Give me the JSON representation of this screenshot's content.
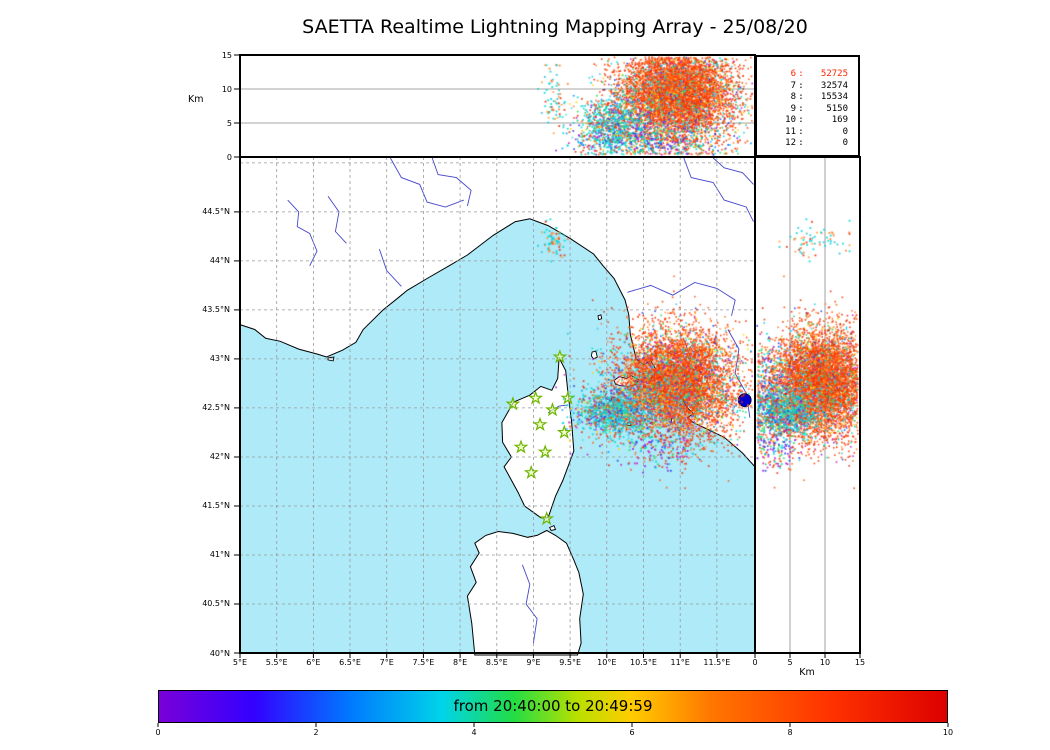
{
  "title": "SAETTA Realtime Lightning Mapping Array - 25/08/20",
  "axes": {
    "alt_label_top": "Km",
    "alt_label_right": "Km",
    "alt_ticks": [
      "0",
      "5",
      "10",
      "15"
    ],
    "alt_tick_values": [
      0,
      5,
      10,
      15
    ],
    "alt_grid_values": [
      5,
      10
    ],
    "lat_ticks": [
      "44.5°N",
      "44°N",
      "43.5°N",
      "43°N",
      "42.5°N",
      "42°N",
      "41.5°N",
      "41°N",
      "40.5°N",
      "40°N"
    ],
    "lat_tick_values": [
      44.5,
      44,
      43.5,
      43,
      42.5,
      42,
      41.5,
      41,
      40.5,
      40
    ],
    "lat_grid_values": [
      45,
      44.5,
      44,
      43.5,
      43,
      42.5,
      42,
      41.5,
      41,
      40.5
    ],
    "lon_ticks": [
      "5°E",
      "5.5°E",
      "6°E",
      "6.5°E",
      "7°E",
      "7.5°E",
      "8°E",
      "8.5°E",
      "9°E",
      "9.5°E",
      "10°E",
      "10.5°E",
      "11°E",
      "11.5°E"
    ],
    "lon_tick_values": [
      5,
      5.5,
      6,
      6.5,
      7,
      7.5,
      8,
      8.5,
      9,
      9.5,
      10,
      10.5,
      11,
      11.5
    ]
  },
  "station_stats": {
    "highlight_color": "#ff2200",
    "rows": [
      {
        "stations": "6",
        "count": "52725",
        "highlight": true
      },
      {
        "stations": "7",
        "count": "32574",
        "highlight": false
      },
      {
        "stations": "8",
        "count": "15534",
        "highlight": false
      },
      {
        "stations": "9",
        "count": "5150",
        "highlight": false
      },
      {
        "stations": "10",
        "count": "169",
        "highlight": false
      },
      {
        "stations": "11",
        "count": "0",
        "highlight": false
      },
      {
        "stations": "12",
        "count": "0",
        "highlight": false
      }
    ]
  },
  "colorbar": {
    "label": "from 20:40:00 to 20:49:59",
    "ticks": [
      "0",
      "2",
      "4",
      "6",
      "8",
      "10"
    ],
    "tick_values": [
      0,
      2,
      4,
      6,
      8,
      10
    ],
    "range": [
      0,
      10
    ],
    "gradient": [
      [
        0,
        "#7a00d8"
      ],
      [
        0.12,
        "#3300ff"
      ],
      [
        0.24,
        "#0077ff"
      ],
      [
        0.36,
        "#00d4e8"
      ],
      [
        0.45,
        "#22dd44"
      ],
      [
        0.53,
        "#b8e000"
      ],
      [
        0.6,
        "#ffcc00"
      ],
      [
        0.7,
        "#ff7700"
      ],
      [
        0.85,
        "#ff3300"
      ],
      [
        1,
        "#dd0000"
      ]
    ]
  },
  "map": {
    "sea_color": "#aeeaf8",
    "land_color": "#ffffff",
    "coast_color": "#000000",
    "river_color": "#4747cc",
    "grid_color": "#999999",
    "station_stroke": "#6db500",
    "station_fill": "#e8ffb0",
    "lon_range": [
      5,
      12.02
    ],
    "lat_range": [
      40,
      45.06
    ],
    "blue_marker": {
      "lon": 11.88,
      "lat": 42.58,
      "color": "#0000cc"
    },
    "coastlines": {
      "mainland": [
        [
          5.0,
          43.35
        ],
        [
          5.2,
          43.3
        ],
        [
          5.35,
          43.21
        ],
        [
          5.55,
          43.18
        ],
        [
          5.8,
          43.1
        ],
        [
          6.05,
          43.05
        ],
        [
          6.18,
          43.02
        ],
        [
          6.4,
          43.09
        ],
        [
          6.58,
          43.17
        ],
        [
          6.68,
          43.3
        ],
        [
          6.95,
          43.5
        ],
        [
          7.15,
          43.62
        ],
        [
          7.28,
          43.7
        ],
        [
          7.55,
          43.82
        ],
        [
          7.85,
          43.95
        ],
        [
          8.1,
          44.06
        ],
        [
          8.45,
          44.26
        ],
        [
          8.75,
          44.4
        ],
        [
          8.95,
          44.43
        ],
        [
          9.2,
          44.36
        ],
        [
          9.5,
          44.23
        ],
        [
          9.82,
          44.07
        ],
        [
          9.95,
          43.95
        ],
        [
          10.1,
          43.82
        ],
        [
          10.25,
          43.6
        ],
        [
          10.3,
          43.45
        ],
        [
          10.32,
          43.25
        ],
        [
          10.4,
          43.0
        ],
        [
          10.5,
          42.94
        ],
        [
          10.6,
          42.98
        ],
        [
          10.68,
          42.88
        ],
        [
          10.6,
          42.8
        ],
        [
          10.72,
          42.74
        ],
        [
          10.88,
          42.69
        ],
        [
          11.0,
          42.62
        ],
        [
          11.1,
          42.5
        ],
        [
          11.18,
          42.44
        ],
        [
          11.1,
          42.4
        ],
        [
          11.18,
          42.35
        ],
        [
          11.35,
          42.29
        ],
        [
          11.6,
          42.2
        ],
        [
          11.85,
          42.04
        ],
        [
          12.02,
          41.9
        ],
        [
          12.02,
          45.06
        ],
        [
          5.0,
          45.06
        ]
      ],
      "corsica": [
        [
          9.35,
          43.01
        ],
        [
          9.44,
          42.88
        ],
        [
          9.47,
          42.66
        ],
        [
          9.52,
          42.36
        ],
        [
          9.55,
          42.06
        ],
        [
          9.4,
          41.76
        ],
        [
          9.3,
          41.6
        ],
        [
          9.2,
          41.38
        ],
        [
          9.1,
          41.38
        ],
        [
          8.88,
          41.5
        ],
        [
          8.79,
          41.64
        ],
        [
          8.6,
          41.9
        ],
        [
          8.7,
          42.0
        ],
        [
          8.58,
          42.15
        ],
        [
          8.57,
          42.35
        ],
        [
          8.73,
          42.56
        ],
        [
          8.95,
          42.63
        ],
        [
          9.1,
          42.72
        ],
        [
          9.25,
          42.68
        ],
        [
          9.33,
          42.8
        ]
      ],
      "sardinia": [
        [
          8.2,
          39.98
        ],
        [
          8.16,
          40.3
        ],
        [
          8.1,
          40.58
        ],
        [
          8.22,
          40.72
        ],
        [
          8.14,
          40.88
        ],
        [
          8.26,
          41.02
        ],
        [
          8.2,
          41.12
        ],
        [
          8.35,
          41.2
        ],
        [
          8.52,
          41.24
        ],
        [
          8.72,
          41.22
        ],
        [
          8.92,
          41.18
        ],
        [
          9.05,
          41.2
        ],
        [
          9.18,
          41.25
        ],
        [
          9.3,
          41.2
        ],
        [
          9.45,
          41.12
        ],
        [
          9.55,
          40.95
        ],
        [
          9.62,
          40.82
        ],
        [
          9.68,
          40.6
        ],
        [
          9.63,
          40.35
        ],
        [
          9.65,
          40.1
        ],
        [
          9.6,
          39.98
        ]
      ],
      "islands": [
        [
          [
            10.1,
            42.78
          ],
          [
            10.17,
            42.82
          ],
          [
            10.27,
            42.8
          ],
          [
            10.33,
            42.83
          ],
          [
            10.43,
            42.79
          ],
          [
            10.4,
            42.74
          ],
          [
            10.28,
            42.72
          ],
          [
            10.18,
            42.73
          ],
          [
            10.12,
            42.74
          ]
        ],
        [
          [
            9.8,
            43.07
          ],
          [
            9.85,
            43.08
          ],
          [
            9.87,
            43.02
          ],
          [
            9.82,
            43.0
          ],
          [
            9.79,
            43.03
          ]
        ],
        [
          [
            9.88,
            43.44
          ],
          [
            9.92,
            43.45
          ],
          [
            9.93,
            43.41
          ],
          [
            9.89,
            43.4
          ]
        ],
        [
          [
            10.06,
            42.6
          ],
          [
            10.1,
            42.61
          ],
          [
            10.11,
            42.57
          ],
          [
            10.06,
            42.57
          ]
        ],
        [
          [
            10.28,
            42.35
          ],
          [
            10.32,
            42.36
          ],
          [
            10.33,
            42.32
          ],
          [
            10.28,
            42.32
          ]
        ],
        [
          [
            10.88,
            42.39
          ],
          [
            10.92,
            42.39
          ],
          [
            10.92,
            42.34
          ],
          [
            10.88,
            42.35
          ]
        ],
        [
          [
            9.22,
            41.28
          ],
          [
            9.28,
            41.3
          ],
          [
            9.3,
            41.26
          ],
          [
            9.24,
            41.25
          ]
        ],
        [
          [
            6.2,
            43.01
          ],
          [
            6.28,
            43.02
          ],
          [
            6.27,
            42.98
          ],
          [
            6.2,
            42.99
          ]
        ]
      ]
    },
    "rivers": [
      [
        [
          5.65,
          44.62
        ],
        [
          5.8,
          44.5
        ],
        [
          5.78,
          44.35
        ],
        [
          5.95,
          44.28
        ],
        [
          6.05,
          44.1
        ],
        [
          5.95,
          43.95
        ]
      ],
      [
        [
          6.2,
          44.66
        ],
        [
          6.35,
          44.5
        ],
        [
          6.3,
          44.3
        ],
        [
          6.45,
          44.18
        ]
      ],
      [
        [
          6.9,
          44.12
        ],
        [
          7.0,
          43.9
        ],
        [
          7.2,
          43.74
        ]
      ],
      [
        [
          7.05,
          45.05
        ],
        [
          7.2,
          44.85
        ],
        [
          7.45,
          44.78
        ],
        [
          7.55,
          44.6
        ],
        [
          7.8,
          44.55
        ],
        [
          8.05,
          44.62
        ]
      ],
      [
        [
          7.62,
          45.05
        ],
        [
          7.7,
          44.88
        ],
        [
          7.95,
          44.85
        ],
        [
          8.15,
          44.72
        ],
        [
          8.1,
          44.56
        ]
      ],
      [
        [
          11.05,
          45.05
        ],
        [
          11.15,
          44.85
        ],
        [
          11.45,
          44.8
        ],
        [
          11.6,
          44.62
        ],
        [
          11.9,
          44.55
        ],
        [
          12.0,
          44.4
        ]
      ],
      [
        [
          11.45,
          45.05
        ],
        [
          11.6,
          44.95
        ],
        [
          11.85,
          44.9
        ],
        [
          12.0,
          44.78
        ]
      ],
      [
        [
          10.28,
          43.68
        ],
        [
          10.6,
          43.75
        ],
        [
          10.9,
          43.65
        ],
        [
          11.2,
          43.78
        ],
        [
          11.5,
          43.72
        ],
        [
          11.75,
          43.6
        ],
        [
          11.7,
          43.44
        ]
      ],
      [
        [
          11.65,
          43.3
        ],
        [
          11.8,
          43.1
        ],
        [
          11.75,
          42.85
        ],
        [
          11.9,
          42.65
        ],
        [
          11.95,
          42.4
        ]
      ],
      [
        [
          11.05,
          43.2
        ],
        [
          11.15,
          43.0
        ],
        [
          11.0,
          42.78
        ],
        [
          11.05,
          42.68
        ]
      ],
      [
        [
          8.85,
          40.9
        ],
        [
          8.95,
          40.7
        ],
        [
          8.9,
          40.5
        ],
        [
          9.05,
          40.35
        ],
        [
          9.0,
          40.1
        ]
      ],
      [
        [
          9.2,
          42.45
        ],
        [
          9.35,
          42.52
        ],
        [
          9.47,
          42.53
        ]
      ]
    ],
    "stations": [
      [
        9.36,
        43.02
      ],
      [
        8.72,
        42.54
      ],
      [
        9.03,
        42.6
      ],
      [
        9.26,
        42.48
      ],
      [
        9.47,
        42.6
      ],
      [
        9.09,
        42.33
      ],
      [
        8.83,
        42.1
      ],
      [
        9.16,
        42.05
      ],
      [
        8.97,
        41.84
      ],
      [
        9.42,
        42.25
      ],
      [
        9.18,
        41.37
      ]
    ]
  },
  "chart_data": {
    "type": "scatter",
    "title": "SAETTA Realtime Lightning Mapping Array - 25/08/20",
    "time_window": {
      "from": "20:40:00",
      "to": "20:49:59"
    },
    "panels": [
      {
        "id": "altitude-vs-longitude",
        "x": "longitude_deg_E",
        "y": "altitude_km",
        "x_range": [
          5,
          12.02
        ],
        "y_range": [
          0,
          15
        ],
        "grid": "partial"
      },
      {
        "id": "map-lat-vs-lon",
        "x": "longitude_deg_E",
        "y": "latitude_deg_N",
        "x_range": [
          5,
          12.02
        ],
        "y_range": [
          40,
          45.06
        ],
        "grid": "dashed-0.5deg"
      },
      {
        "id": "altitude-vs-latitude",
        "x": "altitude_km",
        "y": "latitude_deg_N",
        "x_range": [
          0,
          15
        ],
        "y_range": [
          40,
          45.06
        ],
        "grid": "partial"
      }
    ],
    "station_histogram": {
      "stations": [
        6,
        7,
        8,
        9,
        10,
        11,
        12
      ],
      "sources": [
        52725,
        32574,
        15534,
        5150,
        169,
        0,
        0
      ]
    },
    "clusters": [
      {
        "name": "storm-core",
        "n": 6500,
        "size": 1.6,
        "lon": {
          "mean": 10.95,
          "sd": 0.4
        },
        "lat": {
          "mean": 42.75,
          "sd": 0.27
        },
        "alt": {
          "mean": 9.5,
          "sd": 3.5,
          "min": 0.5,
          "max": 15
        },
        "palette": [
          [
            "#ff4000",
            26
          ],
          [
            "#e83008",
            22
          ],
          [
            "#ff5f14",
            16
          ],
          [
            "#ff7a28",
            10
          ],
          [
            "#ffa040",
            5
          ],
          [
            "#ffd800",
            3
          ],
          [
            "#00d8d8",
            6
          ],
          [
            "#30c8e0",
            3
          ],
          [
            "#2244ee",
            2
          ],
          [
            "#30d860",
            3
          ],
          [
            "#cc22cc",
            2
          ],
          [
            "#8822ee",
            1
          ]
        ]
      },
      {
        "name": "west-flank",
        "n": 950,
        "size": 1.7,
        "lon": {
          "mean": 10.1,
          "sd": 0.25
        },
        "lat": {
          "mean": 42.46,
          "sd": 0.11
        },
        "alt": {
          "mean": 4.5,
          "sd": 2.3,
          "min": 0,
          "max": 12
        },
        "palette": [
          [
            "#00d8d8",
            28
          ],
          [
            "#2cc3d4",
            14
          ],
          [
            "#4ce0e0",
            10
          ],
          [
            "#ff5f14",
            10
          ],
          [
            "#e83008",
            7
          ],
          [
            "#2244ee",
            7
          ],
          [
            "#30d860",
            6
          ],
          [
            "#cc22cc",
            5
          ],
          [
            "#ffd800",
            3
          ],
          [
            "#00a0ff",
            5
          ]
        ]
      },
      {
        "name": "low-level-debris",
        "n": 550,
        "size": 1.7,
        "lon": {
          "mean": 10.65,
          "sd": 0.55
        },
        "lat": {
          "mean": 42.55,
          "sd": 0.3
        },
        "alt": {
          "mean": 1.8,
          "sd": 1.5,
          "min": 0,
          "max": 5
        },
        "palette": [
          [
            "#00d8d8",
            18
          ],
          [
            "#ff5f14",
            18
          ],
          [
            "#e83008",
            12
          ],
          [
            "#2244ee",
            10
          ],
          [
            "#30d860",
            8
          ],
          [
            "#cc22cc",
            8
          ],
          [
            "#00a0ff",
            8
          ],
          [
            "#ffd800",
            4
          ],
          [
            "#8822ee",
            4
          ]
        ]
      },
      {
        "name": "northern-cell",
        "n": 70,
        "size": 1.8,
        "lon": {
          "mean": 9.28,
          "sd": 0.09
        },
        "lat": {
          "mean": 44.22,
          "sd": 0.09
        },
        "alt": {
          "mean": 8.5,
          "sd": 2.6,
          "min": 3.5,
          "max": 13.5
        },
        "palette": [
          [
            "#00d8d8",
            12
          ],
          [
            "#ff7a28",
            8
          ],
          [
            "#e83008",
            5
          ],
          [
            "#ffa040",
            4
          ],
          [
            "#2cc3d4",
            5
          ]
        ]
      },
      {
        "name": "southern-sparse",
        "n": 80,
        "size": 1.8,
        "lon": {
          "mean": 10.7,
          "sd": 0.2
        },
        "lat": {
          "mean": 42.12,
          "sd": 0.11
        },
        "alt": {
          "mean": 3,
          "sd": 2,
          "min": 0,
          "max": 8
        },
        "palette": [
          [
            "#cc22cc",
            10
          ],
          [
            "#8822ee",
            8
          ],
          [
            "#2244ee",
            6
          ],
          [
            "#00d8d8",
            6
          ],
          [
            "#ff5f14",
            4
          ],
          [
            "#30d860",
            3
          ]
        ]
      }
    ]
  }
}
